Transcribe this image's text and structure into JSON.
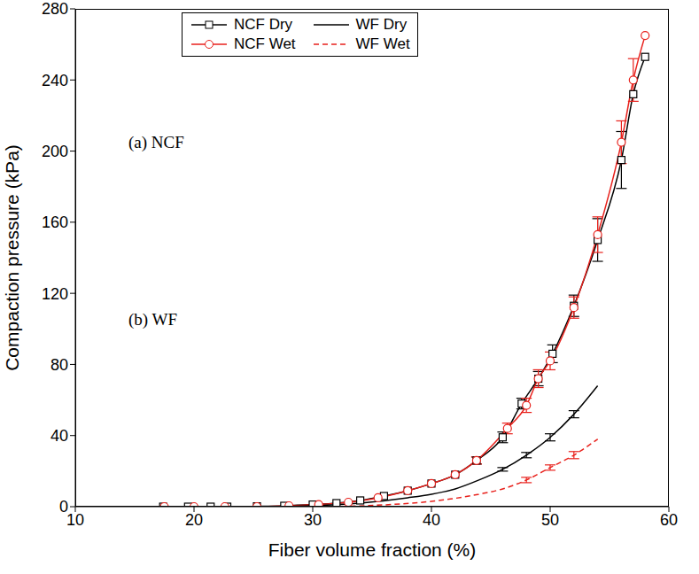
{
  "chart_data": {
    "type": "line",
    "xlabel": "Fiber volume fraction (%)",
    "ylabel": "Compaction pressure (kPa)",
    "xlim": [
      10,
      60
    ],
    "xticks": [
      10,
      20,
      30,
      40,
      50,
      60
    ],
    "ylim": [
      0,
      280
    ],
    "yticks": [
      0,
      40,
      80,
      120,
      160,
      200,
      240,
      280
    ],
    "grid": false,
    "legend": "upper left",
    "annotations": [
      "(a) NCF",
      "(b) WF"
    ],
    "series": [
      {
        "name": "NCF Dry",
        "color": "#000000",
        "marker": "square",
        "line_style": "solid",
        "x": [
          17.4,
          19.5,
          21.4,
          22.8,
          25.3,
          27.6,
          30,
          32,
          34,
          36,
          38,
          40,
          42,
          43.8,
          46,
          47.6,
          49,
          50.2,
          52,
          54,
          56,
          57,
          58
        ],
        "values": [
          0,
          0,
          0,
          0,
          0.2,
          0.5,
          1.2,
          2,
          3.5,
          6,
          9,
          13,
          18,
          26,
          39,
          58,
          72,
          86,
          113,
          150,
          195,
          232,
          253
        ],
        "errors": [
          null,
          null,
          null,
          null,
          null,
          null,
          null,
          null,
          null,
          null,
          null,
          null,
          null,
          2,
          3,
          3,
          4,
          5,
          6,
          12,
          16,
          null,
          null
        ]
      },
      {
        "name": "NCF Wet",
        "color": "#e8211c",
        "marker": "circle",
        "line_style": "solid",
        "x": [
          17.5,
          20,
          22.6,
          25.3,
          28,
          30.5,
          33,
          35.5,
          38,
          40,
          42,
          43.8,
          46.4,
          48,
          49,
          50,
          52,
          54,
          56,
          57,
          58
        ],
        "values": [
          0,
          0,
          0,
          0,
          0.5,
          1.2,
          2.5,
          5,
          9,
          13,
          18,
          26,
          44,
          57,
          72,
          82,
          112,
          153,
          205,
          240,
          265
        ],
        "errors": [
          null,
          null,
          null,
          null,
          null,
          null,
          null,
          null,
          null,
          null,
          null,
          2,
          3,
          4,
          5,
          5,
          6,
          10,
          12,
          12,
          null
        ]
      },
      {
        "name": "WF Dry",
        "color": "#000000",
        "marker": "none",
        "line_style": "solid",
        "x": [
          16,
          25,
          30,
          34,
          38,
          40,
          42,
          44,
          46,
          48,
          50,
          52,
          54
        ],
        "values": [
          0,
          0,
          0.5,
          2,
          5,
          7,
          10,
          15,
          21,
          29,
          39,
          52,
          68
        ],
        "errors": [
          null,
          null,
          null,
          null,
          null,
          null,
          null,
          null,
          1,
          1.5,
          2,
          2,
          null
        ]
      },
      {
        "name": "WF Wet",
        "color": "#e8211c",
        "marker": "none",
        "line_style": "dashed",
        "x": [
          16,
          30,
          36,
          40,
          44,
          46,
          48,
          50,
          52,
          54
        ],
        "values": [
          0,
          0,
          1,
          3,
          7,
          10,
          15,
          22,
          29,
          38
        ],
        "errors": [
          null,
          null,
          null,
          null,
          null,
          null,
          1.5,
          1.5,
          2,
          null
        ]
      }
    ]
  }
}
